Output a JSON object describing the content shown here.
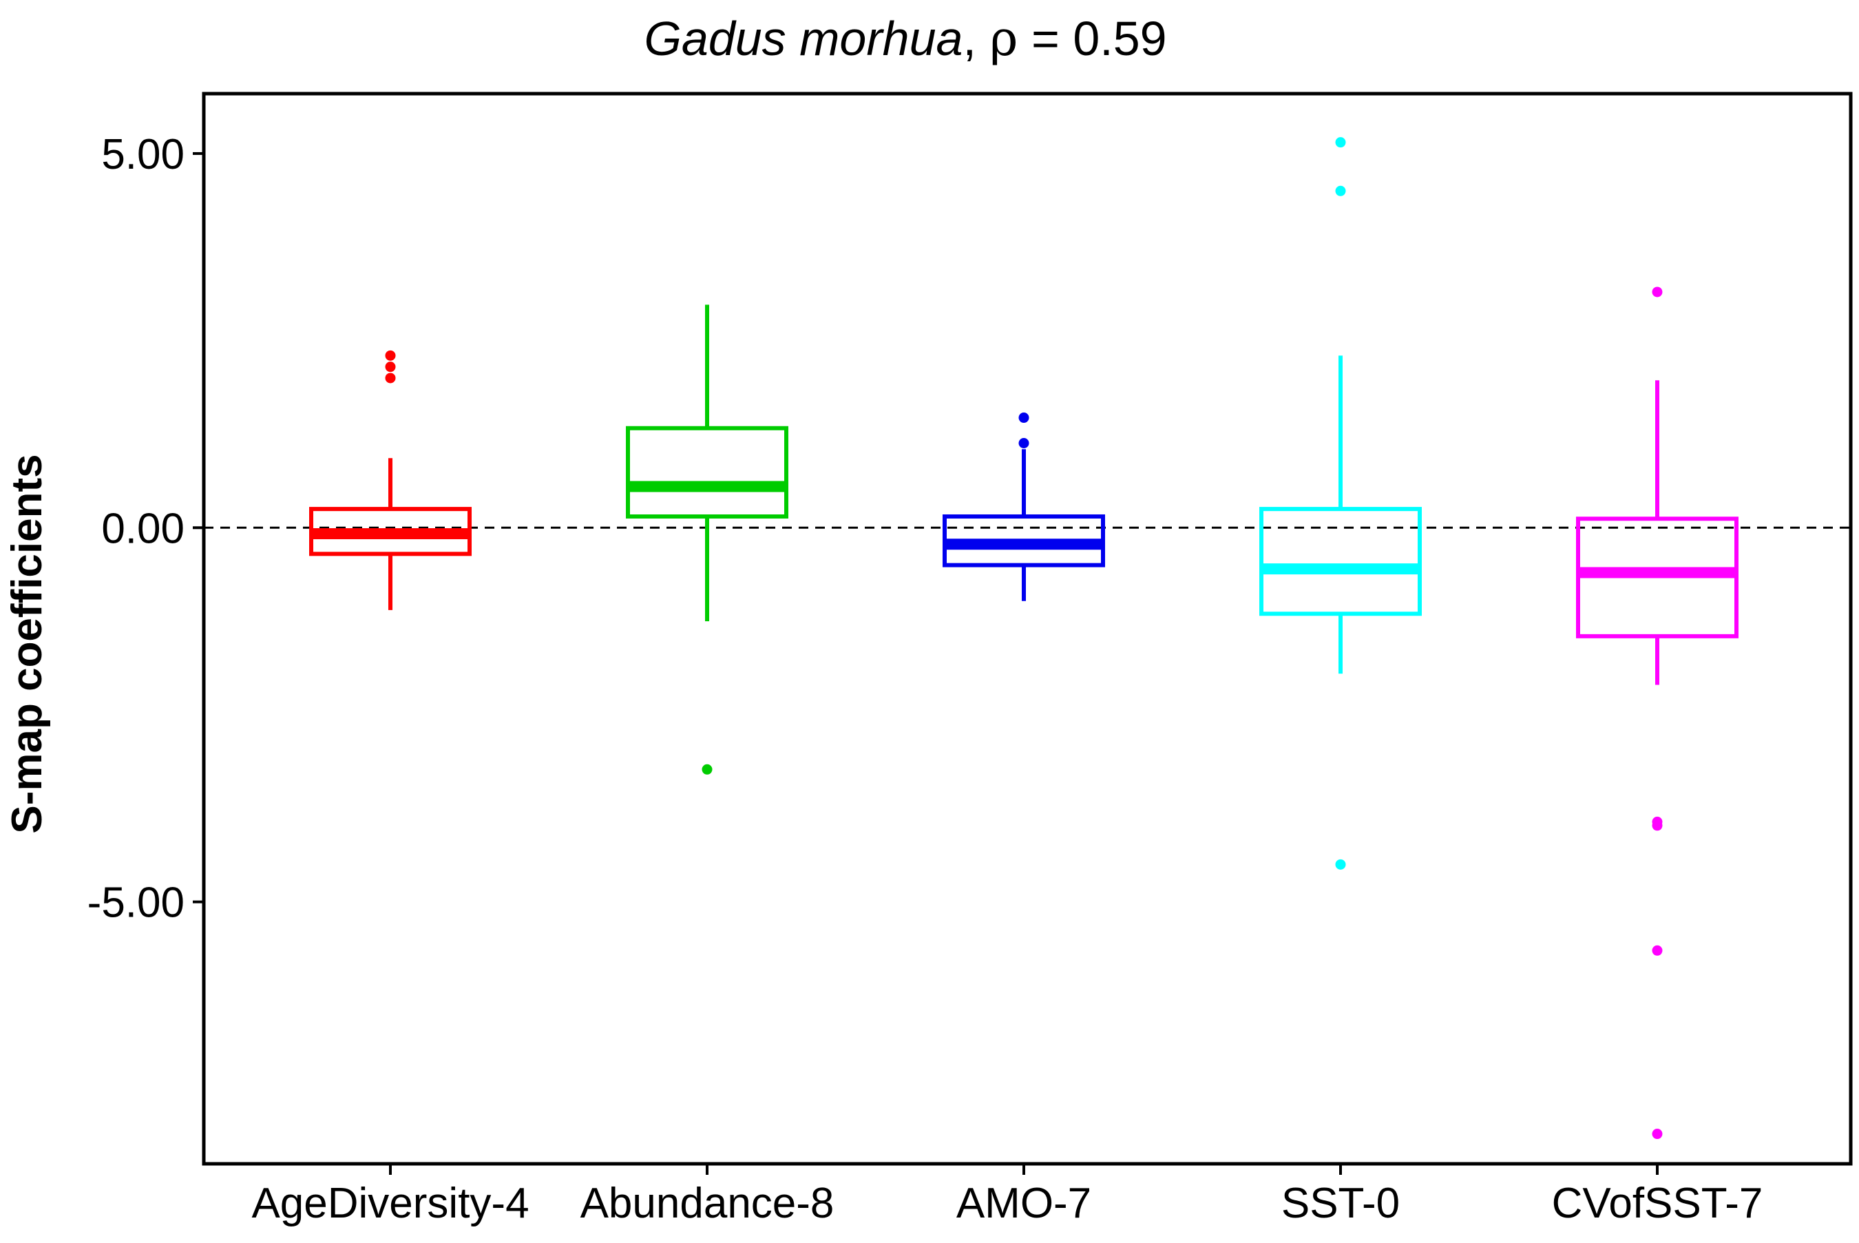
{
  "chart_data": {
    "type": "box",
    "title": {
      "species": "Gadus morhua",
      "separator": ", ",
      "rho_symbol": "ρ",
      "rho_value_text": " = 0.59"
    },
    "xlabel": "",
    "ylabel": "S-map coefficients",
    "ylim": [
      -8.5,
      5.8
    ],
    "yticks": [
      5,
      0,
      -5
    ],
    "ytick_labels": [
      "5.00",
      "0.00",
      "-5.00"
    ],
    "reference_line": {
      "y": 0,
      "style": "dashed",
      "color": "#000000"
    },
    "grid": false,
    "legend": "none",
    "categories": [
      "AgeDiversity-4",
      "Abundance-8",
      "AMO-7",
      "SST-0",
      "CVofSST-7"
    ],
    "series": [
      {
        "category": "AgeDiversity-4",
        "color": "#ff0000",
        "whisker_low": -1.1,
        "q1": -0.35,
        "median": -0.08,
        "q3": 0.25,
        "whisker_high": 0.93,
        "outliers": [
          2.3,
          2.15,
          2.0
        ]
      },
      {
        "category": "Abundance-8",
        "color": "#00cc00",
        "whisker_low": -1.25,
        "q1": 0.15,
        "median": 0.55,
        "q3": 1.33,
        "whisker_high": 2.98,
        "outliers": [
          -3.23
        ]
      },
      {
        "category": "AMO-7",
        "color": "#0000ee",
        "whisker_low": -0.98,
        "q1": -0.5,
        "median": -0.22,
        "q3": 0.15,
        "whisker_high": 1.05,
        "outliers": [
          1.47,
          1.13
        ]
      },
      {
        "category": "SST-0",
        "color": "#00ffff",
        "whisker_low": -1.95,
        "q1": -1.15,
        "median": -0.55,
        "q3": 0.25,
        "whisker_high": 2.3,
        "outliers": [
          5.15,
          4.5,
          -4.5
        ]
      },
      {
        "category": "CVofSST-7",
        "color": "#ff00ff",
        "whisker_low": -2.1,
        "q1": -1.45,
        "median": -0.6,
        "q3": 0.12,
        "whisker_high": 1.97,
        "outliers": [
          3.15,
          -3.93,
          -3.98,
          -5.65,
          -8.1
        ]
      }
    ]
  }
}
